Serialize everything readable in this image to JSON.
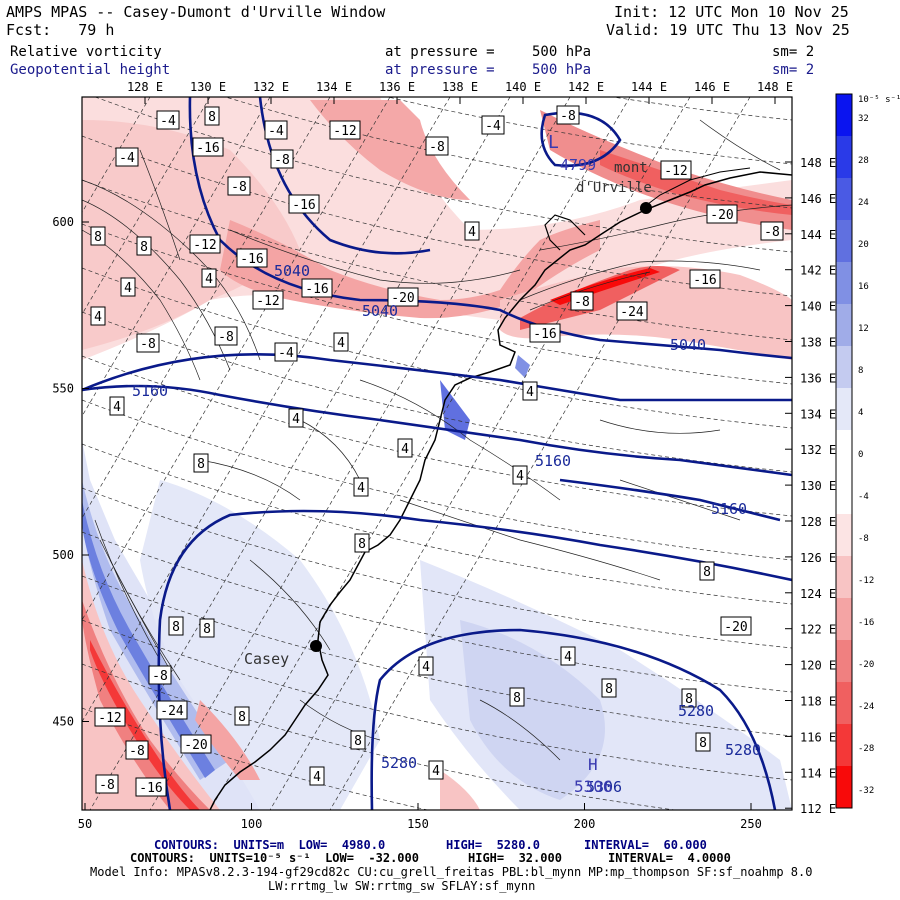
{
  "header": {
    "title": "AMPS MPAS -- Casey-Dumont d'Urville Window",
    "init": "Init: 12 UTC Mon 10 Nov 25",
    "fcst": "Fcst:   79 h",
    "valid": "Valid: 19 UTC Thu 13 Nov 25"
  },
  "fields": [
    {
      "name": "Relative vorticity",
      "pressure_label": "at pressure =",
      "pressure": "500 hPa",
      "sm": "sm= 2"
    },
    {
      "name": "Geopotential height",
      "pressure_label": "at pressure =",
      "pressure": "500 hPa",
      "sm": "sm= 2"
    }
  ],
  "axes": {
    "top_ticks": [
      "128 E",
      "130 E",
      "132 E",
      "134 E",
      "136 E",
      "138 E",
      "140 E",
      "142 E",
      "144 E",
      "146 E",
      "148 E"
    ],
    "right_ticks": [
      "148 E",
      "146 E",
      "144 E",
      "142 E",
      "140 E",
      "138 E",
      "136 E",
      "134 E",
      "132 E",
      "130 E",
      "128 E",
      "126 E",
      "124 E",
      "122 E",
      "120 E",
      "118 E",
      "116 E",
      "114 E",
      "112 E"
    ],
    "bottom_ticks": [
      "50",
      "100",
      "150",
      "200",
      "250"
    ],
    "left_ticks": [
      "600",
      "550",
      "500",
      "450"
    ]
  },
  "colorbar": {
    "unit_label": "10⁻⁵ s⁻¹",
    "labels": [
      "32",
      "28",
      "24",
      "20",
      "16",
      "12",
      "8",
      "4",
      "0",
      "-4",
      "-8",
      "-12",
      "-16",
      "-20",
      "-24",
      "-28",
      "-32"
    ],
    "colors": [
      "#0a14f0",
      "#2a3ae8",
      "#4a5ae4",
      "#6070e0",
      "#8090e4",
      "#a0ace8",
      "#c4cbf0",
      "#e4e8f8",
      "#ffffff",
      "#ffffff",
      "#fce4e4",
      "#f8c4c4",
      "#f4a4a4",
      "#f08080",
      "#f06060",
      "#f43838",
      "#f80a0a"
    ]
  },
  "places": {
    "casey": "Casey",
    "dumont": "mont",
    "dumont2": "d'Urville"
  },
  "height_labels": [
    "5040",
    "5040",
    "5040",
    "5160",
    "5160",
    "5160",
    "5280",
    "5280",
    "5280",
    "5306"
  ],
  "highs_lows": {
    "L": "L",
    "L_value": "4799",
    "H": "H",
    "H_value": "5306"
  },
  "vort_labels": [
    "-4",
    "8",
    "-4",
    "-12",
    "-4",
    "-8",
    "-16",
    "-4",
    "-8",
    "-8",
    "-8",
    "-12",
    "-20",
    "-8",
    "4",
    "-16",
    "-12",
    "-12",
    "-16",
    "-20",
    "-16",
    "-8",
    "-24",
    "-8",
    "-16",
    "-16",
    "-8",
    "-4",
    "4",
    "8",
    "4",
    "4",
    "4",
    "8",
    "4",
    "4",
    "8",
    "4",
    "4",
    "4",
    "8",
    "4",
    "8",
    "-20",
    "8",
    "8",
    "-8",
    "-24",
    "-12",
    "-20",
    "-8",
    "-16",
    "-8",
    "8",
    "4",
    "4",
    "8",
    "8",
    "4",
    "8",
    "8",
    "8",
    "4"
  ],
  "footer": {
    "line1_a": "CONTOURS:  UNITS=m  LOW=  4980.0",
    "line1_b": "HIGH=  5280.0",
    "line1_c": "INTERVAL=  60.000",
    "line2_a": "CONTOURS:  UNITS=10⁻⁵ s⁻¹  LOW=  -32.000",
    "line2_b": "HIGH=  32.000",
    "line2_c": "INTERVAL=  4.0000",
    "line3": "Model Info: MPASv8.2.3-194-gf29cd82c CU:cu_grell_freitas PBL:bl_mynn MP:mp_thompson SF:sf_noahmp 8.0",
    "line4": "LW:rrtmg_lw SW:rrtmg_sw SFLAY:sf_mynn"
  }
}
